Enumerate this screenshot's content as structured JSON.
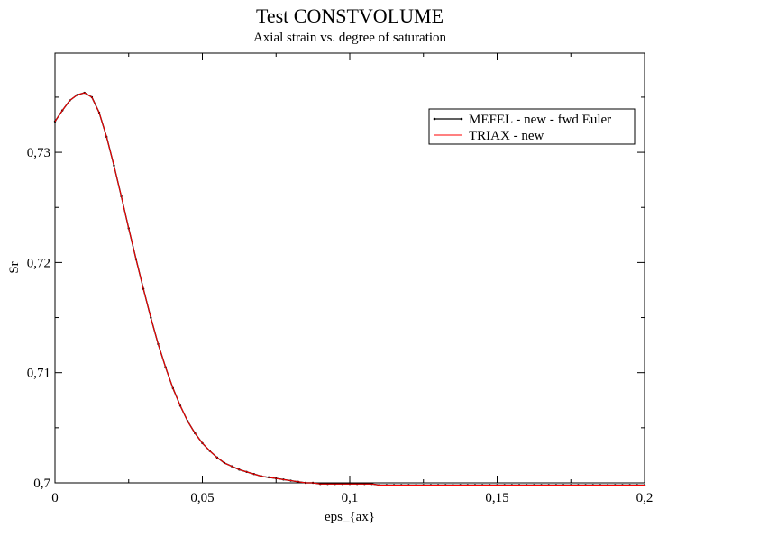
{
  "chart_data": {
    "type": "line",
    "title": "Test CONSTVOLUME",
    "subtitle": "Axial strain vs. degree of saturation",
    "xlabel": "eps_{ax}",
    "ylabel": "Sr",
    "xlim": [
      0,
      0.2
    ],
    "ylim": [
      0.7,
      0.739
    ],
    "x_ticks": [
      0,
      0.05,
      0.1,
      0.15,
      0.2
    ],
    "x_tick_labels": [
      "0",
      "0,05",
      "0,1",
      "0,15",
      "0,2"
    ],
    "y_ticks": [
      0.7,
      0.71,
      0.72,
      0.73
    ],
    "y_tick_labels": [
      "0,7",
      "0,71",
      "0,72",
      "0,73"
    ],
    "grid": false,
    "legend_position": "top-right",
    "series": [
      {
        "name": "MEFEL - new - fwd Euler",
        "color": "#000000",
        "marker": "dot",
        "x": [
          0,
          0.0025,
          0.005,
          0.0075,
          0.01,
          0.0125,
          0.015,
          0.0175,
          0.02,
          0.0225,
          0.025,
          0.0275,
          0.03,
          0.0325,
          0.035,
          0.0375,
          0.04,
          0.0425,
          0.045,
          0.0475,
          0.05,
          0.0525,
          0.055,
          0.0575,
          0.06,
          0.0625,
          0.065,
          0.0675,
          0.07,
          0.0725,
          0.075,
          0.0775,
          0.08,
          0.0825,
          0.085,
          0.0875,
          0.09,
          0.0925,
          0.095,
          0.0975,
          0.1,
          0.1025,
          0.105,
          0.1075,
          0.11,
          0.1125,
          0.115,
          0.1175,
          0.12,
          0.1225,
          0.125,
          0.1275,
          0.13,
          0.1325,
          0.135,
          0.1375,
          0.14,
          0.1425,
          0.145,
          0.1475,
          0.15,
          0.1525,
          0.155,
          0.1575,
          0.16,
          0.1625,
          0.165,
          0.1675,
          0.17,
          0.1725,
          0.175,
          0.1775,
          0.18,
          0.1825,
          0.185,
          0.1875,
          0.19,
          0.1925,
          0.195,
          0.1975,
          0.2
        ],
        "y": [
          0.7328,
          0.7338,
          0.7347,
          0.7352,
          0.7354,
          0.735,
          0.7336,
          0.7314,
          0.7288,
          0.726,
          0.7231,
          0.7203,
          0.7176,
          0.715,
          0.7126,
          0.7105,
          0.7086,
          0.707,
          0.7056,
          0.7045,
          0.7036,
          0.7029,
          0.7023,
          0.7018,
          0.7015,
          0.7012,
          0.701,
          0.7008,
          0.7006,
          0.7005,
          0.7004,
          0.7003,
          0.7002,
          0.7001,
          0.7,
          0.7,
          0.6999,
          0.6999,
          0.6999,
          0.6999,
          0.6999,
          0.6999,
          0.6999,
          0.6999,
          0.6998,
          0.6998,
          0.6998,
          0.6998,
          0.6998,
          0.6998,
          0.6998,
          0.6998,
          0.6998,
          0.6998,
          0.6998,
          0.6998,
          0.6998,
          0.6998,
          0.6998,
          0.6998,
          0.6998,
          0.6998,
          0.6998,
          0.6998,
          0.6998,
          0.6998,
          0.6998,
          0.6998,
          0.6998,
          0.6998,
          0.6998,
          0.6998,
          0.6998,
          0.6998,
          0.6998,
          0.6998,
          0.6998,
          0.6998,
          0.6998,
          0.6998,
          0.6998
        ]
      },
      {
        "name": "TRIAX - new",
        "color": "#ff0000",
        "marker": "none",
        "x": [
          0,
          0.0025,
          0.005,
          0.0075,
          0.01,
          0.0125,
          0.015,
          0.0175,
          0.02,
          0.0225,
          0.025,
          0.0275,
          0.03,
          0.0325,
          0.035,
          0.0375,
          0.04,
          0.0425,
          0.045,
          0.0475,
          0.05,
          0.0525,
          0.055,
          0.0575,
          0.06,
          0.0625,
          0.065,
          0.0675,
          0.07,
          0.0725,
          0.075,
          0.0775,
          0.08,
          0.0825,
          0.085,
          0.0875,
          0.09,
          0.0925,
          0.095,
          0.0975,
          0.1,
          0.1025,
          0.105,
          0.1075,
          0.11,
          0.1125,
          0.115,
          0.1175,
          0.12,
          0.1225,
          0.125,
          0.1275,
          0.13,
          0.1325,
          0.135,
          0.1375,
          0.14,
          0.1425,
          0.145,
          0.1475,
          0.15,
          0.1525,
          0.155,
          0.1575,
          0.16,
          0.1625,
          0.165,
          0.1675,
          0.17,
          0.1725,
          0.175,
          0.1775,
          0.18,
          0.1825,
          0.185,
          0.1875,
          0.19,
          0.1925,
          0.195,
          0.1975,
          0.2
        ],
        "y": [
          0.7328,
          0.7338,
          0.7347,
          0.7352,
          0.7354,
          0.735,
          0.7336,
          0.7314,
          0.7288,
          0.726,
          0.7231,
          0.7203,
          0.7176,
          0.715,
          0.7126,
          0.7105,
          0.7086,
          0.707,
          0.7056,
          0.7045,
          0.7036,
          0.7029,
          0.7023,
          0.7018,
          0.7015,
          0.7012,
          0.701,
          0.7008,
          0.7006,
          0.7005,
          0.7004,
          0.7003,
          0.7002,
          0.7001,
          0.7,
          0.7,
          0.6999,
          0.6999,
          0.6999,
          0.6999,
          0.6999,
          0.6999,
          0.6999,
          0.6999,
          0.6998,
          0.6998,
          0.6998,
          0.6998,
          0.6998,
          0.6998,
          0.6998,
          0.6998,
          0.6998,
          0.6998,
          0.6998,
          0.6998,
          0.6998,
          0.6998,
          0.6998,
          0.6998,
          0.6998,
          0.6998,
          0.6998,
          0.6998,
          0.6998,
          0.6998,
          0.6998,
          0.6998,
          0.6998,
          0.6998,
          0.6998,
          0.6998,
          0.6998,
          0.6998,
          0.6998,
          0.6998,
          0.6998,
          0.6998,
          0.6998,
          0.6998,
          0.6998
        ]
      }
    ]
  }
}
